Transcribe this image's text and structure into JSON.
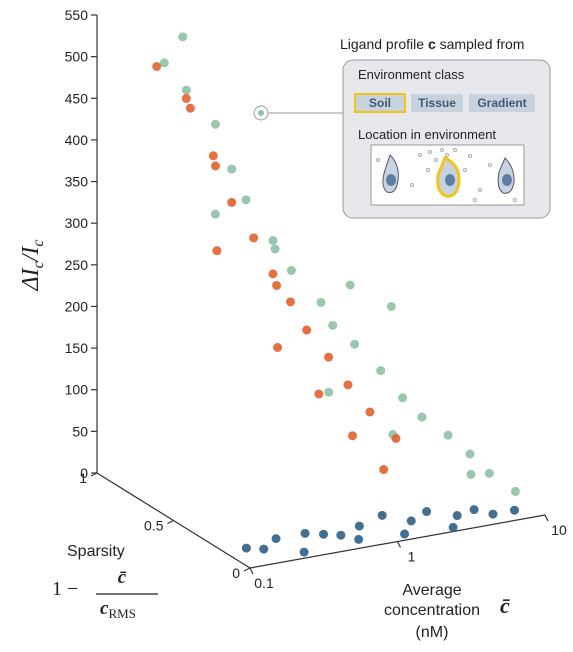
{
  "chart_data": {
    "type": "scatter3d",
    "z_label": [
      "ΔI",
      "c",
      "/I",
      "c"
    ],
    "zlim": [
      0,
      550
    ],
    "zticks": [
      0,
      50,
      100,
      150,
      200,
      250,
      300,
      350,
      400,
      450,
      500,
      550
    ],
    "y_label": "Sparsity",
    "y_formula": [
      "1 −",
      "c̄",
      "c",
      "RMS"
    ],
    "ylim": [
      0,
      1
    ],
    "yticks": [
      0,
      0.5,
      1
    ],
    "x_label": [
      "Average",
      "concentration",
      "(nM)"
    ],
    "x_symbol": "c̄",
    "xlim": [
      0.1,
      10
    ],
    "xticks": [
      0.1,
      1,
      10
    ],
    "xlog": true,
    "series": [
      {
        "color": "#8fbfa6",
        "x": [
          0.2,
          0.25,
          0.3,
          0.35,
          0.4,
          0.5,
          0.6,
          0.8,
          1,
          1.2,
          1.5,
          2,
          2.5,
          3,
          4,
          5,
          6,
          8,
          0.5,
          1,
          2,
          3,
          0.7,
          1.5,
          4
        ],
        "y": [
          0.85,
          0.8,
          0.9,
          0.75,
          0.7,
          0.7,
          0.6,
          0.6,
          0.5,
          0.5,
          0.45,
          0.4,
          0.35,
          0.3,
          0.25,
          0.2,
          0.15,
          0.1,
          0.9,
          0.8,
          0.6,
          0.5,
          0.3,
          0.2,
          0.1
        ],
        "z": [
          500,
          470,
          520,
          430,
          380,
          340,
          300,
          260,
          230,
          200,
          180,
          150,
          120,
          100,
          80,
          60,
          40,
          20,
          300,
          260,
          230,
          210,
          150,
          100,
          50
        ]
      },
      {
        "color": "#e0622e",
        "x": [
          0.2,
          0.25,
          0.3,
          0.3,
          0.35,
          0.4,
          0.5,
          0.5,
          0.6,
          0.7,
          0.8,
          1,
          1.2,
          1.5,
          2,
          0.4,
          0.6,
          0.9,
          1.3,
          0.25
        ],
        "y": [
          0.9,
          0.8,
          0.85,
          0.7,
          0.75,
          0.7,
          0.65,
          0.5,
          0.6,
          0.55,
          0.5,
          0.45,
          0.4,
          0.35,
          0.3,
          0.4,
          0.3,
          0.25,
          0.2,
          0.6
        ],
        "z": [
          490,
          460,
          440,
          400,
          380,
          340,
          300,
          260,
          260,
          230,
          200,
          170,
          140,
          110,
          80,
          200,
          150,
          100,
          60,
          300
        ]
      },
      {
        "color": "#2e5f86",
        "x": [
          0.12,
          0.15,
          0.2,
          0.3,
          0.4,
          0.5,
          0.7,
          1,
          1.5,
          2,
          3,
          4,
          5,
          7,
          0.25,
          0.6,
          1.2,
          2.5
        ],
        "y": [
          0.1,
          0.08,
          0.12,
          0.1,
          0.1,
          0.08,
          0.1,
          0.1,
          0.08,
          0.1,
          0.07,
          0.08,
          0.05,
          0.05,
          0.03,
          0.04,
          0.03,
          0.02
        ],
        "z": [
          10,
          8,
          12,
          15,
          10,
          8,
          12,
          20,
          10,
          15,
          8,
          10,
          5,
          5,
          3,
          5,
          3,
          2
        ]
      }
    ]
  },
  "inset": {
    "title": [
      "Ligand profile ",
      "c",
      " sampled from"
    ],
    "class_label": "Environment class",
    "buttons": [
      "Soil",
      "Tissue",
      "Gradient"
    ],
    "location_label": "Location in environment"
  }
}
